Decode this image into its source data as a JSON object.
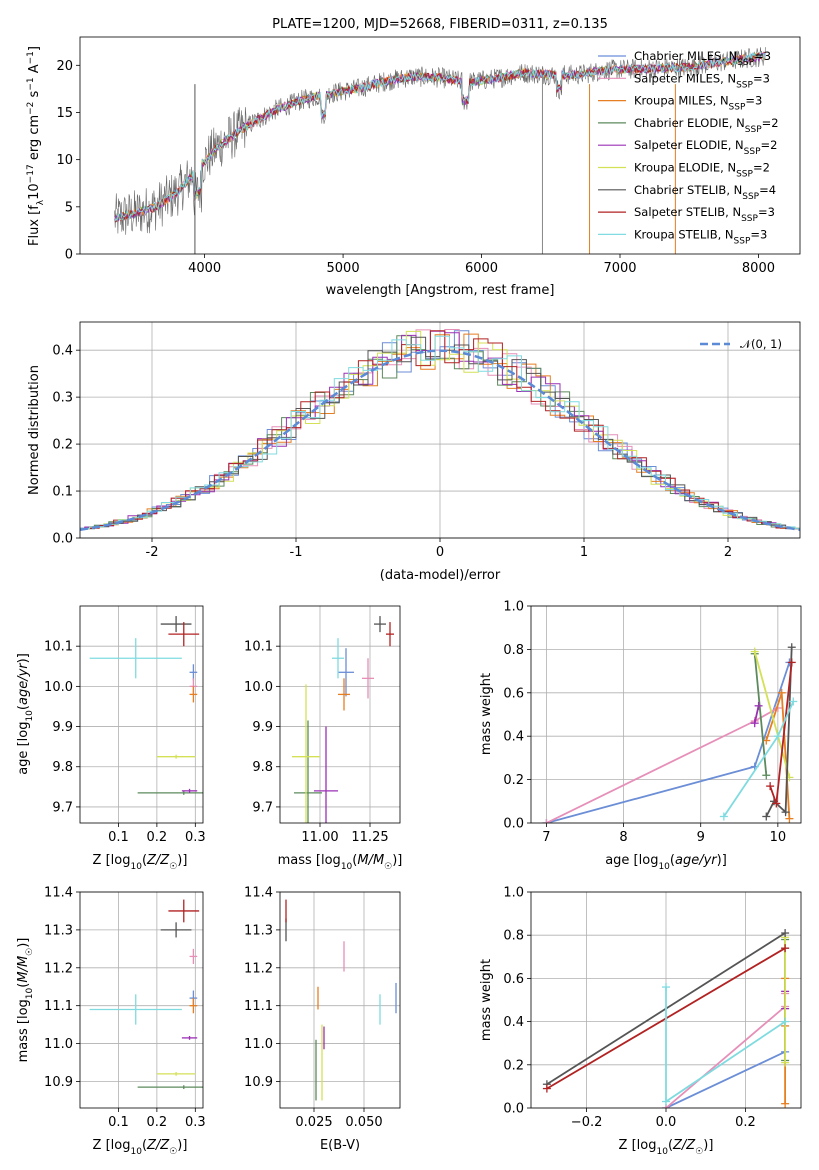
{
  "colors": {
    "chabrier_miles": "#6b8ed6",
    "salpeter_miles": "#e68fb8",
    "kroupa_miles": "#e67e22",
    "chabrier_elodie": "#5c8a5c",
    "salpeter_elodie": "#9b30b5",
    "kroupa_elodie": "#d4e157",
    "chabrier_stelib": "#555555",
    "salpeter_stelib": "#b22222",
    "kroupa_stelib": "#7fdbe0",
    "normal": "#5b8ad6"
  },
  "chart_data": [
    {
      "id": "spectrum",
      "type": "line",
      "title": "PLATE=1200, MJD=52668, FIBERID=0311, z=0.135",
      "xlabel": "wavelength [Angstrom, rest frame]",
      "ylabel": "Flux [fλ10⁻¹⁷ erg cm⁻² s⁻¹ A⁻¹]",
      "xlim": [
        3100,
        8300
      ],
      "ylim": [
        0,
        23
      ],
      "xticks": [
        4000,
        5000,
        6000,
        7000,
        8000
      ],
      "yticks": [
        0,
        5,
        10,
        15,
        20
      ],
      "legend_position": "top-right",
      "legend": [
        "Chabrier MILES, N_SSP=3",
        "Salpeter MILES, N_SSP=3",
        "Kroupa MILES, N_SSP=3",
        "Chabrier ELODIE, N_SSP=2",
        "Salpeter ELODIE, N_SSP=2",
        "Kroupa ELODIE, N_SSP=2",
        "Chabrier STELIB, N_SSP=4",
        "Salpeter STELIB, N_SSP=3",
        "Kroupa STELIB, N_SSP=3"
      ],
      "continuum": {
        "x": [
          3350,
          3500,
          3650,
          3800,
          3950,
          4100,
          4300,
          4500,
          4700,
          4900,
          5100,
          5300,
          5500,
          5700,
          5900,
          6100,
          6300,
          6500,
          6700,
          6900,
          7100,
          7300,
          7500,
          7700,
          7900,
          8050
        ],
        "y": [
          3.8,
          4.3,
          5.0,
          6.5,
          9.0,
          11.5,
          13.5,
          15.2,
          16.3,
          17.0,
          17.5,
          18.3,
          18.8,
          18.7,
          18.2,
          18.6,
          19.2,
          19.0,
          19.0,
          19.5,
          19.6,
          19.7,
          19.8,
          20.3,
          20.7,
          21.0
        ]
      }
    },
    {
      "id": "residuals",
      "type": "line",
      "xlabel": "(data-model)/error",
      "ylabel": "Normed distribution",
      "xlim": [
        -2.5,
        2.5
      ],
      "ylim": [
        0,
        0.46
      ],
      "xticks": [
        -2,
        -1,
        0,
        1,
        2
      ],
      "yticks": [
        0.0,
        0.1,
        0.2,
        0.3,
        0.4
      ],
      "legend": [
        "𝒩(0, 1)"
      ],
      "legend_position": "top-right",
      "grid": true
    },
    {
      "id": "age_vs_Z",
      "type": "scatter",
      "xlabel": "Z [log₁₀(Z/Z☉)]",
      "ylabel": "age  [log₁₀(age/yr)]",
      "xlim": [
        0.0,
        0.32
      ],
      "ylim": [
        9.66,
        10.2
      ],
      "xticks": [
        0.1,
        0.2,
        0.3
      ],
      "xticklabels": [
        "0.1",
        "0.2",
        "0.3"
      ],
      "yticks": [
        9.7,
        9.8,
        9.9,
        10.0,
        10.1
      ],
      "grid": true,
      "points": [
        {
          "s": "chabrier_miles",
          "x": 0.295,
          "y": 10.035,
          "xe": 0.01,
          "ye": 0.02
        },
        {
          "s": "salpeter_miles",
          "x": 0.295,
          "y": 10.0,
          "xe": 0.01,
          "ye": 0.02
        },
        {
          "s": "kroupa_miles",
          "x": 0.295,
          "y": 9.98,
          "xe": 0.01,
          "ye": 0.02
        },
        {
          "s": "chabrier_elodie",
          "x": 0.27,
          "y": 9.735,
          "xe": 0.12,
          "ye": 0.005
        },
        {
          "s": "salpeter_elodie",
          "x": 0.285,
          "y": 9.74,
          "xe": 0.02,
          "ye": 0.005
        },
        {
          "s": "kroupa_elodie",
          "x": 0.25,
          "y": 9.825,
          "xe": 0.05,
          "ye": 0.005
        },
        {
          "s": "chabrier_stelib",
          "x": 0.25,
          "y": 10.155,
          "xe": 0.04,
          "ye": 0.02
        },
        {
          "s": "salpeter_stelib",
          "x": 0.27,
          "y": 10.13,
          "xe": 0.04,
          "ye": 0.03
        },
        {
          "s": "kroupa_stelib",
          "x": 0.145,
          "y": 10.07,
          "xe": 0.12,
          "ye": 0.05
        }
      ]
    },
    {
      "id": "age_vs_mass",
      "type": "scatter",
      "xlabel": "mass [log₁₀(M/M☉)]",
      "ylabel": "",
      "xlim": [
        10.8,
        11.4
      ],
      "ylim": [
        9.66,
        10.2
      ],
      "xticks": [
        11.0,
        11.25
      ],
      "xticklabels": [
        "11.00",
        "11.25"
      ],
      "yticks": [
        9.7,
        9.8,
        9.9,
        10.0,
        10.1
      ],
      "grid": true,
      "points": [
        {
          "s": "chabrier_miles",
          "x": 11.13,
          "y": 10.035,
          "xe": 0.04,
          "ye": 0.06
        },
        {
          "s": "salpeter_miles",
          "x": 11.24,
          "y": 10.02,
          "xe": 0.03,
          "ye": 0.05
        },
        {
          "s": "kroupa_miles",
          "x": 11.12,
          "y": 9.98,
          "xe": 0.03,
          "ye": 0.04
        },
        {
          "s": "chabrier_elodie",
          "x": 10.94,
          "y": 9.735,
          "xe": 0.07,
          "ye": 0.18
        },
        {
          "s": "salpeter_elodie",
          "x": 11.03,
          "y": 9.74,
          "xe": 0.06,
          "ye": 0.16
        },
        {
          "s": "kroupa_elodie",
          "x": 10.93,
          "y": 9.825,
          "xe": 0.07,
          "ye": 0.18
        },
        {
          "s": "chabrier_stelib",
          "x": 11.3,
          "y": 10.155,
          "xe": 0.03,
          "ye": 0.02
        },
        {
          "s": "salpeter_stelib",
          "x": 11.35,
          "y": 10.13,
          "xe": 0.02,
          "ye": 0.03
        },
        {
          "s": "kroupa_stelib",
          "x": 11.09,
          "y": 10.07,
          "xe": 0.03,
          "ye": 0.05
        }
      ]
    },
    {
      "id": "massweight_vs_age",
      "type": "line",
      "xlabel": "age  [log₁₀(age/yr)]",
      "ylabel": "mass weight",
      "xlim": [
        6.8,
        10.3
      ],
      "ylim": [
        0,
        1.0
      ],
      "xticks": [
        7,
        8,
        9,
        10
      ],
      "yticks": [
        0.0,
        0.2,
        0.4,
        0.6,
        0.8,
        1.0
      ],
      "grid": true,
      "series": [
        {
          "s": "chabrier_miles",
          "x": [
            7.0,
            9.7,
            10.15
          ],
          "y": [
            0.0,
            0.26,
            0.74
          ]
        },
        {
          "s": "salpeter_miles",
          "x": [
            7.0,
            9.7,
            10.0
          ],
          "y": [
            0.0,
            0.47,
            0.53
          ]
        },
        {
          "s": "kroupa_miles",
          "x": [
            9.85,
            10.05,
            10.15
          ],
          "y": [
            0.38,
            0.6,
            0.02
          ]
        },
        {
          "s": "chabrier_elodie",
          "x": [
            9.7,
            9.85
          ],
          "y": [
            0.78,
            0.22
          ]
        },
        {
          "s": "salpeter_elodie",
          "x": [
            9.7,
            9.75
          ],
          "y": [
            0.46,
            0.54
          ]
        },
        {
          "s": "kroupa_elodie",
          "x": [
            9.7,
            10.15
          ],
          "y": [
            0.79,
            0.21
          ]
        },
        {
          "s": "chabrier_stelib",
          "x": [
            9.85,
            9.95,
            10.1,
            10.18
          ],
          "y": [
            0.03,
            0.1,
            0.05,
            0.81
          ]
        },
        {
          "s": "salpeter_stelib",
          "x": [
            9.9,
            9.98,
            10.18
          ],
          "y": [
            0.17,
            0.09,
            0.74
          ]
        },
        {
          "s": "kroupa_stelib",
          "x": [
            9.3,
            10.0,
            10.2
          ],
          "y": [
            0.03,
            0.4,
            0.56
          ]
        }
      ]
    },
    {
      "id": "mass_vs_Z",
      "type": "scatter",
      "xlabel": "Z [log₁₀(Z/Z☉)]",
      "ylabel": "mass [log₁₀(M/M☉)]",
      "xlim": [
        0.0,
        0.32
      ],
      "ylim": [
        10.83,
        11.4
      ],
      "xticks": [
        0.1,
        0.2,
        0.3
      ],
      "xticklabels": [
        "0.1",
        "0.2",
        "0.3"
      ],
      "yticks": [
        10.9,
        11.0,
        11.1,
        11.2,
        11.3,
        11.4
      ],
      "grid": true,
      "points": [
        {
          "s": "chabrier_miles",
          "x": 0.295,
          "y": 11.12,
          "xe": 0.01,
          "ye": 0.02
        },
        {
          "s": "salpeter_miles",
          "x": 0.295,
          "y": 11.23,
          "xe": 0.01,
          "ye": 0.02
        },
        {
          "s": "kroupa_miles",
          "x": 0.295,
          "y": 11.1,
          "xe": 0.01,
          "ye": 0.02
        },
        {
          "s": "chabrier_elodie",
          "x": 0.27,
          "y": 10.885,
          "xe": 0.12,
          "ye": 0.005
        },
        {
          "s": "salpeter_elodie",
          "x": 0.285,
          "y": 11.015,
          "xe": 0.02,
          "ye": 0.005
        },
        {
          "s": "kroupa_elodie",
          "x": 0.25,
          "y": 10.92,
          "xe": 0.05,
          "ye": 0.005
        },
        {
          "s": "chabrier_stelib",
          "x": 0.25,
          "y": 11.3,
          "xe": 0.04,
          "ye": 0.02
        },
        {
          "s": "salpeter_stelib",
          "x": 0.27,
          "y": 11.35,
          "xe": 0.04,
          "ye": 0.03
        },
        {
          "s": "kroupa_stelib",
          "x": 0.145,
          "y": 11.09,
          "xe": 0.12,
          "ye": 0.04
        }
      ]
    },
    {
      "id": "mass_vs_ebv",
      "type": "scatter",
      "xlabel": "E(B-V)",
      "ylabel": "",
      "xlim": [
        0.008,
        0.068
      ],
      "ylim": [
        10.83,
        11.4
      ],
      "xticks": [
        0.025,
        0.05
      ],
      "xticklabels": [
        "0.025",
        "0.050"
      ],
      "yticks": [
        10.9,
        11.0,
        11.1,
        11.2,
        11.3,
        11.4
      ],
      "grid": true,
      "points": [
        {
          "s": "chabrier_miles",
          "x": 0.066,
          "y": 11.12,
          "xe": 0,
          "ye": 0.04
        },
        {
          "s": "salpeter_miles",
          "x": 0.04,
          "y": 11.23,
          "xe": 0,
          "ye": 0.04
        },
        {
          "s": "kroupa_miles",
          "x": 0.027,
          "y": 11.12,
          "xe": 0,
          "ye": 0.03
        },
        {
          "s": "chabrier_elodie",
          "x": 0.026,
          "y": 10.93,
          "xe": 0,
          "ye": 0.08
        },
        {
          "s": "salpeter_elodie",
          "x": 0.03,
          "y": 11.015,
          "xe": 0,
          "ye": 0.03
        },
        {
          "s": "kroupa_elodie",
          "x": 0.029,
          "y": 10.95,
          "xe": 0,
          "ye": 0.1
        },
        {
          "s": "chabrier_stelib",
          "x": 0.011,
          "y": 11.3,
          "xe": 0,
          "ye": 0.03
        },
        {
          "s": "salpeter_stelib",
          "x": 0.011,
          "y": 11.35,
          "xe": 0,
          "ye": 0.03
        },
        {
          "s": "kroupa_stelib",
          "x": 0.058,
          "y": 11.09,
          "xe": 0,
          "ye": 0.04
        }
      ]
    },
    {
      "id": "massweight_vs_Z",
      "type": "line",
      "xlabel": "Z [log₁₀(Z/Z☉)]",
      "ylabel": "mass weight",
      "xlim": [
        -0.34,
        0.34
      ],
      "ylim": [
        0,
        1.0
      ],
      "xticks": [
        -0.2,
        0.0,
        0.2
      ],
      "xticklabels": [
        "−0.2",
        "0.0",
        "0.2"
      ],
      "yticks": [
        0.0,
        0.2,
        0.4,
        0.6,
        0.8,
        1.0
      ],
      "grid": true,
      "series": [
        {
          "s": "chabrier_miles",
          "x": [
            0.0,
            0.3,
            0.3
          ],
          "y": [
            0.0,
            0.26,
            0.74
          ]
        },
        {
          "s": "salpeter_miles",
          "x": [
            0.0,
            0.3,
            0.3
          ],
          "y": [
            0.0,
            0.47,
            0.53
          ]
        },
        {
          "s": "kroupa_miles",
          "x": [
            0.3,
            0.3,
            0.3
          ],
          "y": [
            0.02,
            0.38,
            0.6
          ]
        },
        {
          "s": "chabrier_elodie",
          "x": [
            0.3,
            0.3
          ],
          "y": [
            0.22,
            0.78
          ]
        },
        {
          "s": "salpeter_elodie",
          "x": [
            0.3,
            0.3
          ],
          "y": [
            0.46,
            0.54
          ]
        },
        {
          "s": "kroupa_elodie",
          "x": [
            0.3,
            0.3
          ],
          "y": [
            0.21,
            0.79
          ]
        },
        {
          "s": "chabrier_stelib",
          "x": [
            -0.3,
            0.3
          ],
          "y": [
            0.11,
            0.81
          ]
        },
        {
          "s": "salpeter_stelib",
          "x": [
            -0.3,
            0.3
          ],
          "y": [
            0.09,
            0.74
          ]
        },
        {
          "s": "kroupa_stelib",
          "x": [
            0.0,
            0.0,
            0.3
          ],
          "y": [
            0.56,
            0.03,
            0.4
          ]
        }
      ]
    }
  ]
}
